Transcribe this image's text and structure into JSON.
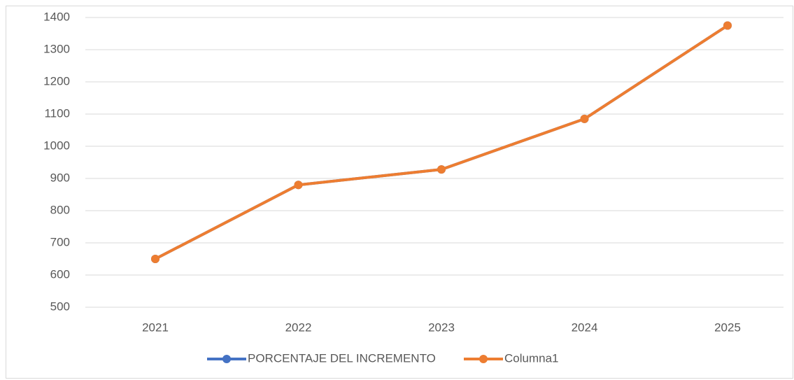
{
  "chart_data": {
    "type": "line",
    "categories": [
      "2021",
      "2022",
      "2023",
      "2024",
      "2025"
    ],
    "series": [
      {
        "name": "PORCENTAJE DEL INCREMENTO",
        "color": "#4472c4",
        "values": [
          650,
          880,
          928,
          1085,
          1375
        ]
      },
      {
        "name": "Columna1",
        "color": "#ed7d31",
        "values": [
          650,
          880,
          928,
          1085,
          1375
        ]
      }
    ],
    "ylim": [
      500,
      1400
    ],
    "yticks": [
      500,
      600,
      700,
      800,
      900,
      1000,
      1100,
      1200,
      1300,
      1400
    ],
    "grid": true,
    "legend": "bottom"
  }
}
